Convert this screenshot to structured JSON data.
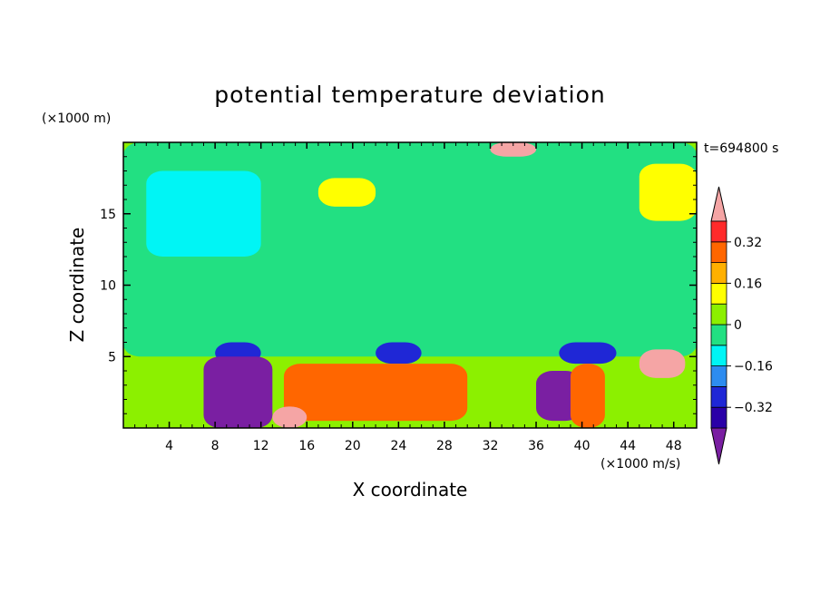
{
  "chart_data": {
    "type": "heatmap",
    "title": "potential temperature deviation",
    "xlabel": "X coordinate",
    "ylabel": "Z coordinate",
    "x_unit": "(×1000 m/s)",
    "y_unit": "(×1000 m)",
    "time_label": "t=694800 s",
    "xlim": [
      0,
      50
    ],
    "ylim": [
      0,
      20
    ],
    "x_ticks": [
      4,
      8,
      12,
      16,
      20,
      24,
      28,
      32,
      36,
      40,
      44,
      48
    ],
    "y_ticks": [
      5,
      10,
      15
    ],
    "colorbar": {
      "levels": [
        -0.48,
        -0.4,
        -0.32,
        -0.24,
        -0.16,
        -0.08,
        0,
        0.08,
        0.16,
        0.24,
        0.32,
        0.4,
        0.48
      ],
      "tick_labels": [
        "0.32",
        "0.16",
        "0",
        "−0.16",
        "−0.32"
      ],
      "tick_values": [
        0.32,
        0.16,
        0,
        -0.16,
        -0.32
      ],
      "colors": [
        "#7a1fa2",
        "#2a00a8",
        "#1f27d6",
        "#2d8cf0",
        "#00f5f5",
        "#22e082",
        "#8cf000",
        "#ffff00",
        "#ffb000",
        "#ff6600",
        "#ff2a2a",
        "#f5a5a5"
      ]
    },
    "features": [
      {
        "x": [
          0,
          50
        ],
        "z": [
          0,
          20
        ],
        "value": 0.04
      },
      {
        "x": [
          0,
          50
        ],
        "z": [
          5,
          20
        ],
        "value": -0.02
      },
      {
        "x": [
          17,
          22
        ],
        "z": [
          15.5,
          17.5
        ],
        "value": 0.12
      },
      {
        "x": [
          45,
          50
        ],
        "z": [
          14.5,
          18.5
        ],
        "value": 0.12
      },
      {
        "x": [
          2,
          12
        ],
        "z": [
          12,
          18
        ],
        "value": -0.12
      },
      {
        "x": [
          8,
          12
        ],
        "z": [
          4.5,
          6
        ],
        "value": -0.3
      },
      {
        "x": [
          22,
          26
        ],
        "z": [
          4.5,
          6
        ],
        "value": -0.3
      },
      {
        "x": [
          38,
          43
        ],
        "z": [
          4.5,
          6
        ],
        "value": -0.3
      },
      {
        "x": [
          7,
          13
        ],
        "z": [
          0,
          5
        ],
        "value": -0.4
      },
      {
        "x": [
          14,
          30
        ],
        "z": [
          0.5,
          4.5
        ],
        "value": 0.26
      },
      {
        "x": [
          36,
          40
        ],
        "z": [
          0.5,
          4
        ],
        "value": -0.45
      },
      {
        "x": [
          39,
          42
        ],
        "z": [
          0,
          4.5
        ],
        "value": 0.3
      },
      {
        "x": [
          13,
          16
        ],
        "z": [
          0,
          1.5
        ],
        "value": 0.45
      },
      {
        "x": [
          45,
          49
        ],
        "z": [
          3.5,
          5.5
        ],
        "value": 0.45
      },
      {
        "x": [
          32,
          36
        ],
        "z": [
          19,
          20
        ],
        "value": 0.45
      }
    ]
  }
}
